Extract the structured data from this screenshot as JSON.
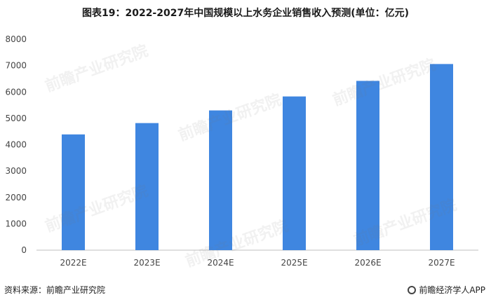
{
  "title": "图表19：2022-2027年中国规模以上水务企业销售收入预测(单位：亿元)",
  "source": "资料来源：前瞻产业研究院",
  "brand": "前瞻经济学人APP",
  "watermark": "前瞻产业研究院",
  "colors": {
    "bar": "#3f86e0",
    "axis": "#bfbfbf",
    "text": "#444444"
  },
  "chart_data": {
    "type": "bar",
    "categories": [
      "2022E",
      "2023E",
      "2024E",
      "2025E",
      "2026E",
      "2027E"
    ],
    "values": [
      4390,
      4820,
      5300,
      5830,
      6420,
      7060
    ],
    "ylim": [
      0,
      8000
    ],
    "yticks": [
      0,
      1000,
      2000,
      3000,
      4000,
      5000,
      6000,
      7000,
      8000
    ],
    "grid": false,
    "xlabel": "",
    "ylabel": ""
  }
}
